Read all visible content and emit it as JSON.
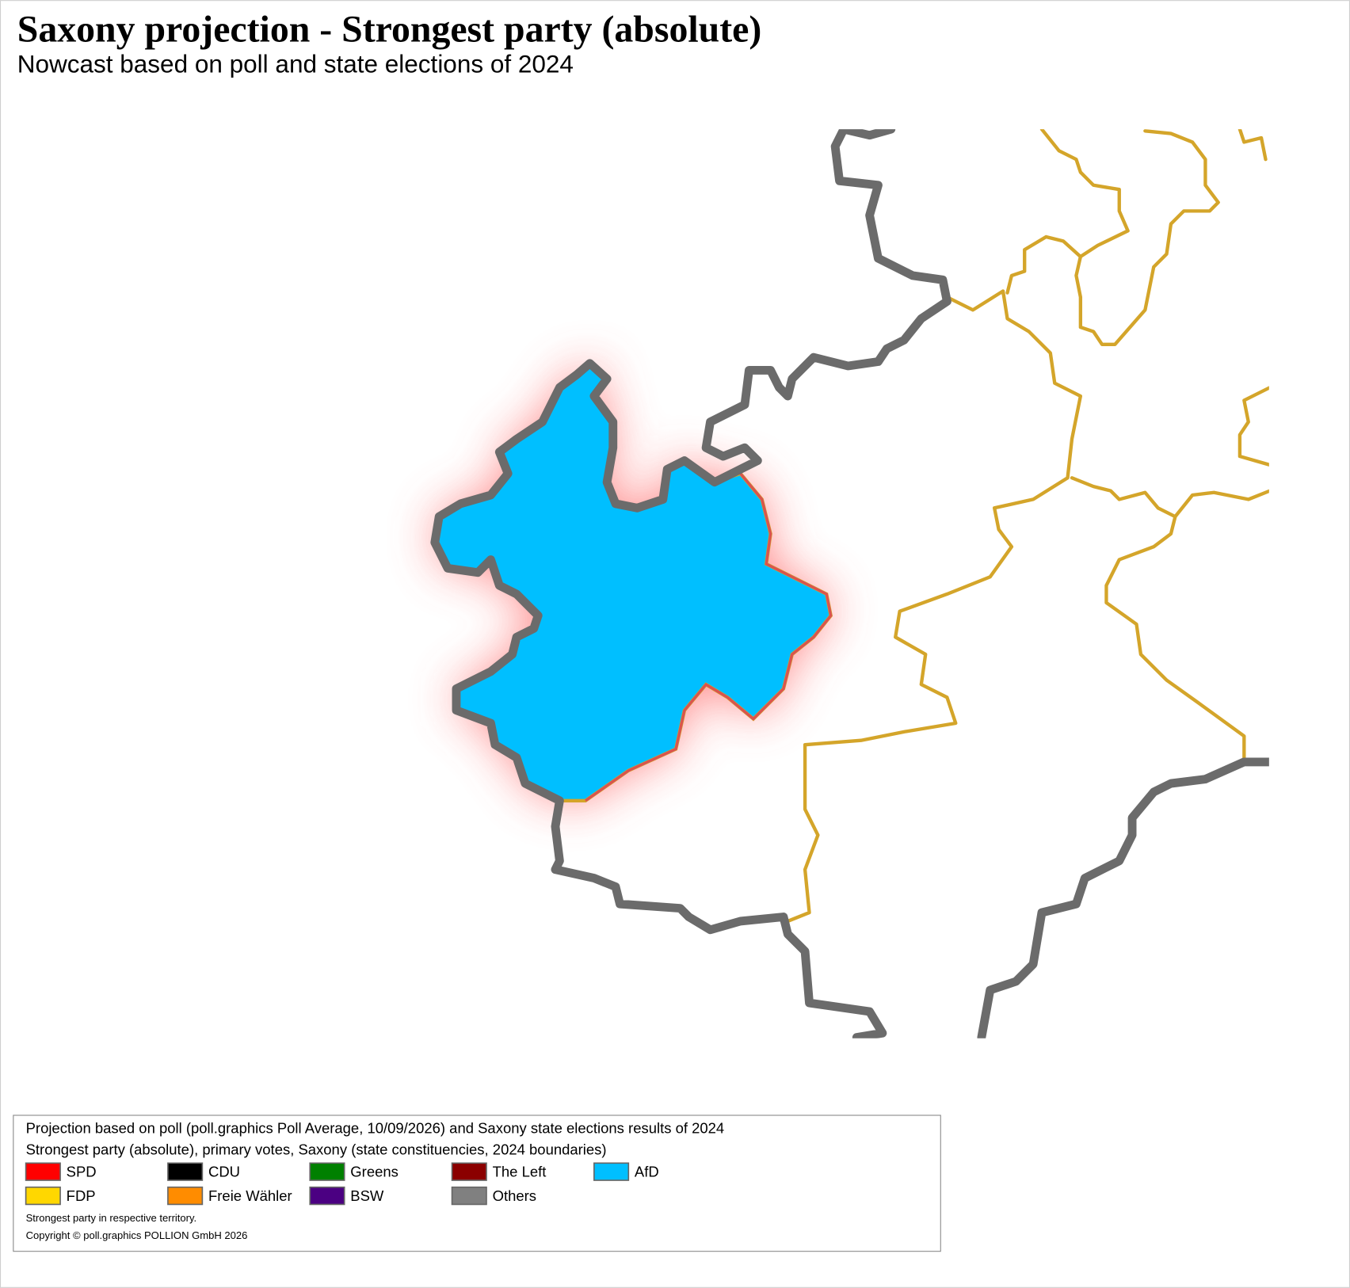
{
  "header": {
    "title": "Saxony projection - Strongest party (absolute)",
    "subtitle": "Nowcast based on poll and state elections of 2024"
  },
  "legend": {
    "lines": [
      "Projection based on poll (poll.graphics Poll Average, 10/09/2026) and Saxony state elections results of 2024",
      "Strongest party (absolute), primary votes, Saxony (state constituencies, 2024 boundaries)"
    ],
    "items": [
      {
        "name": "SPD",
        "color": "#ff0000"
      },
      {
        "name": "CDU",
        "color": "#000000"
      },
      {
        "name": "Greens",
        "color": "#008000"
      },
      {
        "name": "The Left",
        "color": "#8b0000"
      },
      {
        "name": "AfD",
        "color": "#00bfff"
      },
      {
        "name": "FDP",
        "color": "#ffd700"
      },
      {
        "name": "Freie Wähler",
        "color": "#ff8c00"
      },
      {
        "name": "BSW",
        "color": "#4b0082"
      },
      {
        "name": "Others",
        "color": "#808080"
      }
    ],
    "notes": [
      "Strongest party in respective territory.",
      "Copyright © poll.graphics POLLION GmbH 2026"
    ]
  }
}
